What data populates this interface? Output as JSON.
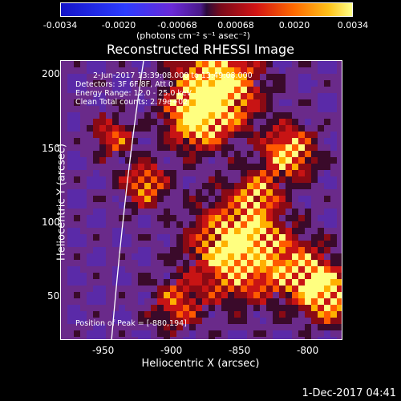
{
  "colorbar": {
    "ticks": [
      "-0.0034",
      "-0.0020",
      "-0.00068",
      "0.00068",
      "0.0020",
      "0.0034"
    ],
    "units": "(photons cm⁻² s⁻¹ asec⁻²)"
  },
  "title": "Reconstructed RHESSI Image",
  "annotations": {
    "time": "2-Jun-2017 13:39:08.000 to 13:49:08.000",
    "detectors": "Detectors: 3F 6F 8F, Att 0",
    "energy": "Energy Range: 12.0 - 25.0 keV",
    "clean": "Clean     Total counts: 2.79e+02",
    "peak": "Position of Peak = [-880,194]"
  },
  "axes": {
    "xlabel": "Heliocentric X (arcsec)",
    "ylabel": "Heliocentric Y (arcsec)",
    "xticks": [
      "-950",
      "-900",
      "-850",
      "-800"
    ],
    "yticks": [
      "50",
      "100",
      "150",
      "200"
    ]
  },
  "timestamp": "1-Dec-2017 04:41"
}
